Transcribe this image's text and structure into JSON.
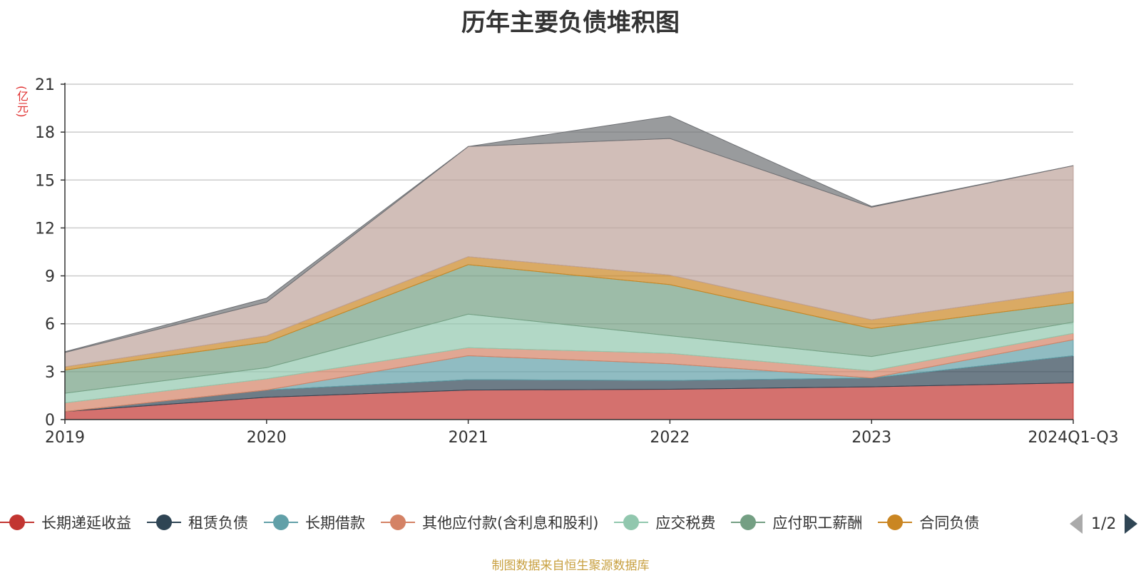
{
  "title": "历年主要负债堆积图",
  "unit_label": "(亿元)",
  "footer": "制图数据来自恒生聚源数据库",
  "pager": {
    "text": "1/2"
  },
  "chart_data": {
    "type": "area",
    "stacked": true,
    "categories": [
      "2019",
      "2020",
      "2021",
      "2022",
      "2023",
      "2024Q1-Q3"
    ],
    "ylim": [
      0,
      21
    ],
    "yticks": [
      0,
      3,
      6,
      9,
      12,
      15,
      18,
      21
    ],
    "grid": true,
    "legend_position": "bottom",
    "series": [
      {
        "name": "长期递延收益",
        "color": "#c23531",
        "values": [
          0.5,
          1.4,
          1.85,
          1.9,
          2.05,
          2.3
        ]
      },
      {
        "name": "租赁负债",
        "color": "#2f4554",
        "values": [
          0.0,
          0.45,
          0.65,
          0.55,
          0.55,
          1.7
        ]
      },
      {
        "name": "长期借款",
        "color": "#61a0a8",
        "values": [
          0.0,
          0.0,
          1.5,
          1.05,
          0.0,
          1.0
        ]
      },
      {
        "name": "其他应付款(含利息和股利)",
        "color": "#d48265",
        "values": [
          0.55,
          0.7,
          0.5,
          0.65,
          0.45,
          0.4
        ]
      },
      {
        "name": "应交税费",
        "color": "#91c7ae",
        "values": [
          0.6,
          0.7,
          2.1,
          1.1,
          0.9,
          0.7
        ]
      },
      {
        "name": "应付职工薪酬",
        "color": "#749f83",
        "values": [
          1.45,
          1.6,
          3.1,
          3.2,
          1.75,
          1.2
        ]
      },
      {
        "name": "合同负债",
        "color": "#ca8622",
        "values": [
          0.2,
          0.4,
          0.5,
          0.6,
          0.55,
          0.75
        ]
      },
      {
        "name": "",
        "color": "#bda29a",
        "values": [
          0.9,
          2.1,
          6.9,
          8.55,
          7.05,
          7.85
        ]
      },
      {
        "name": "",
        "color": "#6e7074",
        "values": [
          0.05,
          0.25,
          0.0,
          1.4,
          0.05,
          0.0
        ]
      }
    ]
  }
}
